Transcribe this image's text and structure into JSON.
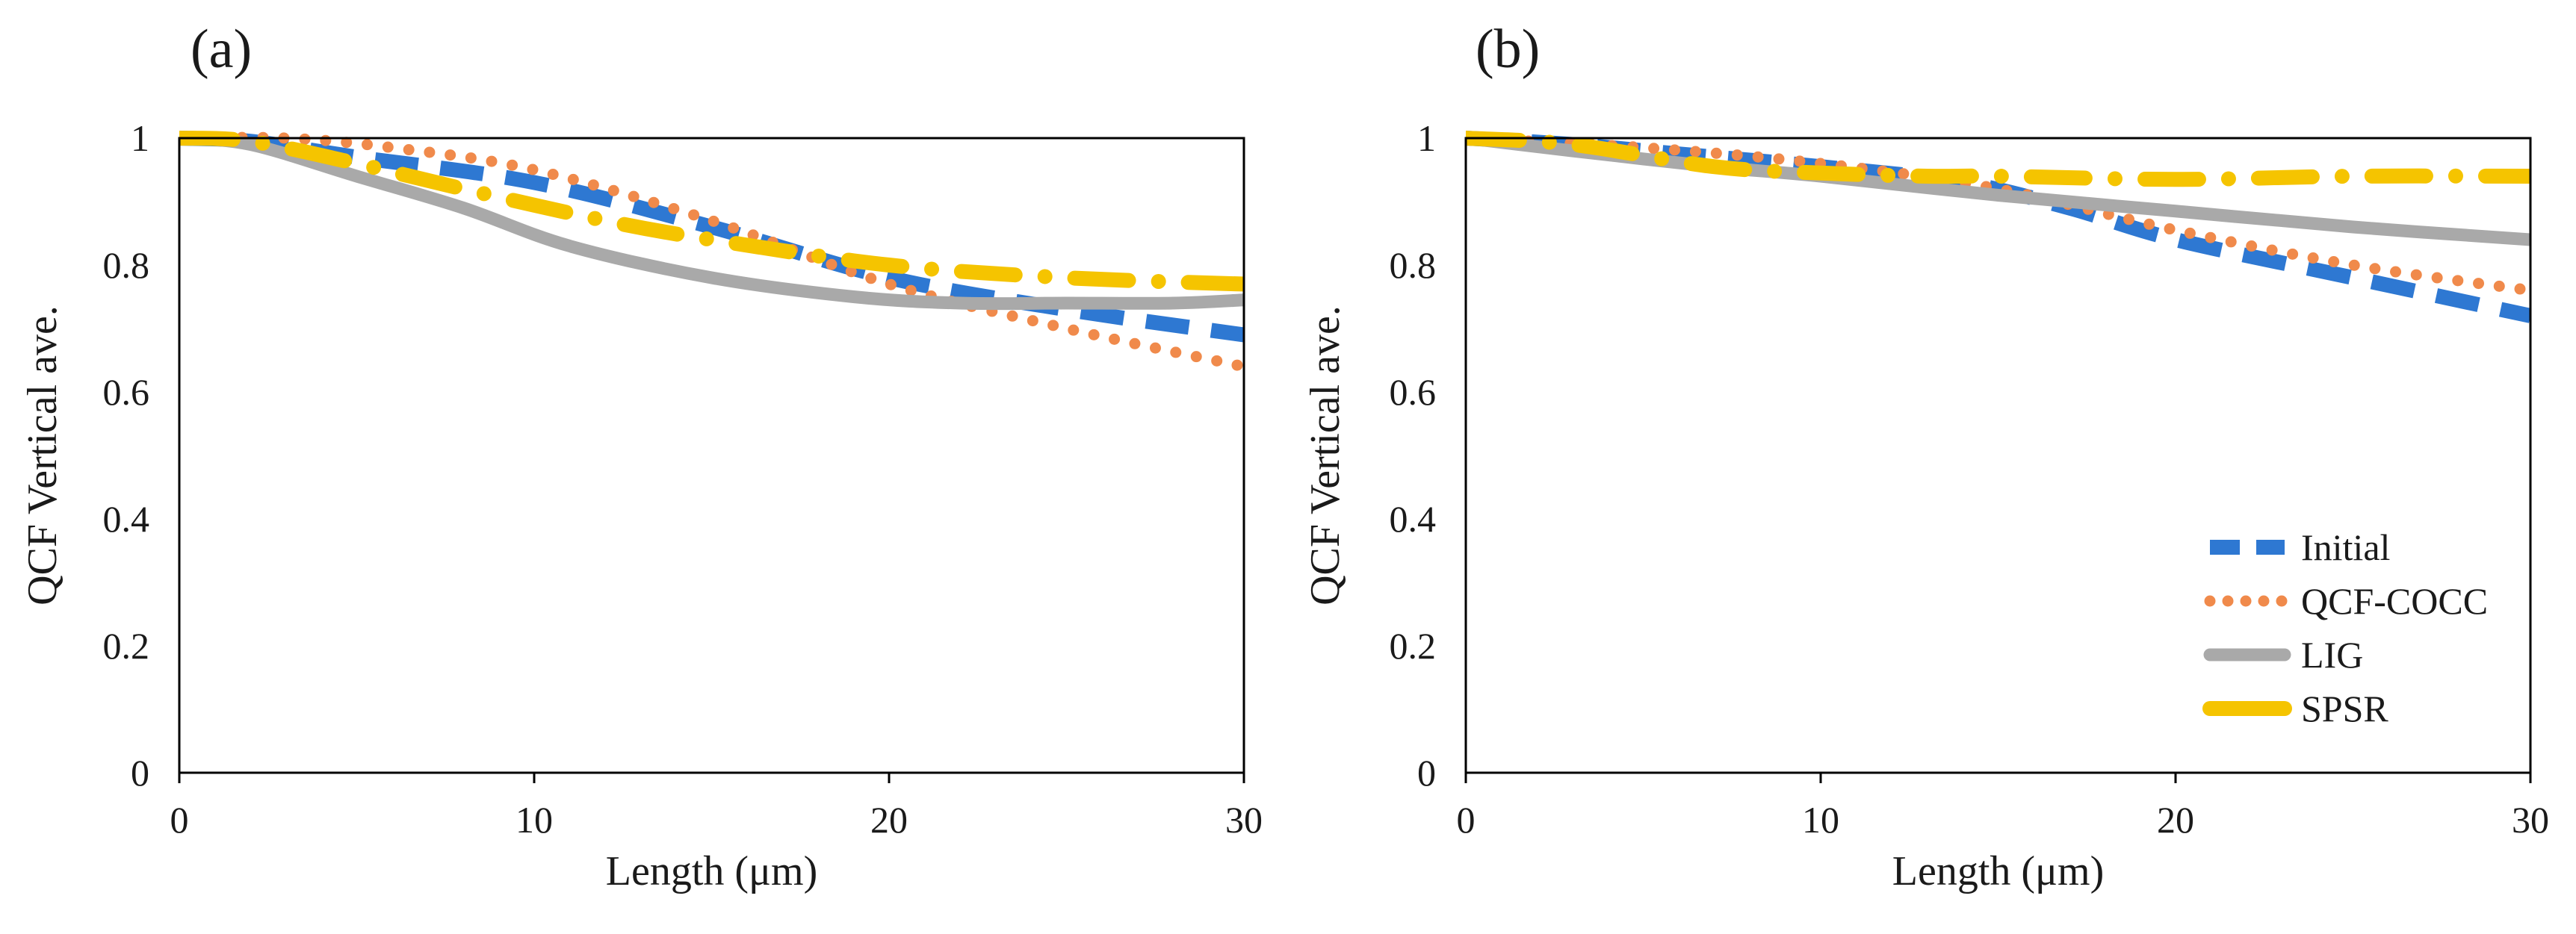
{
  "colors": {
    "Initial": "#2E78D2",
    "QCF-COCC": "#F08A4B",
    "LIG": "#A9A9A9",
    "SPSR": "#F5C400"
  },
  "chart_data": [
    {
      "type": "line",
      "panel": "(a)",
      "xlabel": "Length (μm)",
      "ylabel": "QCF  Vertical  ave.",
      "xlim": [
        0,
        30
      ],
      "ylim": [
        0,
        1
      ],
      "xticks": [
        0,
        10,
        20,
        30
      ],
      "yticks": [
        0,
        0.2,
        0.4,
        0.6,
        0.8,
        1
      ],
      "ytick_labels": [
        "0",
        "0.2",
        "0.4",
        "0.6",
        "0.8",
        "1"
      ],
      "grid": false,
      "series": [
        {
          "name": "Initial",
          "style": "dashed",
          "x": [
            0,
            2,
            5,
            10,
            15,
            20,
            25,
            30
          ],
          "y": [
            1.0,
            0.995,
            0.97,
            0.93,
            0.86,
            0.78,
            0.73,
            0.69
          ]
        },
        {
          "name": "QCF-COCC",
          "style": "dotted",
          "x": [
            0,
            3,
            6,
            10,
            15,
            20,
            25,
            30
          ],
          "y": [
            1.0,
            1.0,
            0.985,
            0.95,
            0.87,
            0.77,
            0.7,
            0.64
          ]
        },
        {
          "name": "LIG",
          "style": "solid",
          "x": [
            0,
            2,
            5,
            8,
            11,
            15,
            19,
            22,
            25,
            28,
            30
          ],
          "y": [
            1.0,
            0.99,
            0.94,
            0.89,
            0.83,
            0.78,
            0.75,
            0.74,
            0.74,
            0.74,
            0.745
          ]
        },
        {
          "name": "SPSR",
          "style": "dashdot",
          "x": [
            0,
            2,
            5,
            8,
            12,
            15,
            20,
            25,
            30
          ],
          "y": [
            1.0,
            0.995,
            0.96,
            0.92,
            0.87,
            0.84,
            0.8,
            0.78,
            0.77
          ]
        }
      ]
    },
    {
      "type": "line",
      "panel": "(b)",
      "xlabel": "Length (μm)",
      "ylabel": "QCF  Vertical  ave.",
      "xlim": [
        0,
        30
      ],
      "ylim": [
        0,
        1
      ],
      "xticks": [
        0,
        10,
        20,
        30
      ],
      "yticks": [
        0,
        0.2,
        0.4,
        0.6,
        0.8,
        1
      ],
      "ytick_labels": [
        "0",
        "0.2",
        "0.4",
        "0.6",
        "0.8",
        "1"
      ],
      "grid": false,
      "legend": "bottom-right",
      "series": [
        {
          "name": "Initial",
          "style": "dashed",
          "x": [
            0,
            3,
            6,
            10,
            14,
            17,
            20,
            25,
            30
          ],
          "y": [
            1.0,
            0.99,
            0.975,
            0.955,
            0.93,
            0.89,
            0.84,
            0.78,
            0.72
          ]
        },
        {
          "name": "QCF-COCC",
          "style": "dotted",
          "x": [
            0,
            5,
            10,
            15,
            20,
            25,
            30
          ],
          "y": [
            1.0,
            0.985,
            0.96,
            0.92,
            0.855,
            0.8,
            0.76
          ]
        },
        {
          "name": "LIG",
          "style": "solid",
          "x": [
            0,
            3,
            7,
            10,
            15,
            20,
            25,
            30
          ],
          "y": [
            1.0,
            0.98,
            0.955,
            0.94,
            0.91,
            0.885,
            0.86,
            0.84
          ]
        },
        {
          "name": "SPSR",
          "style": "dashdot",
          "x": [
            0,
            3,
            7,
            10,
            13,
            15,
            20,
            25,
            30
          ],
          "y": [
            1.0,
            0.99,
            0.955,
            0.945,
            0.94,
            0.94,
            0.935,
            0.94,
            0.94
          ]
        }
      ]
    }
  ]
}
